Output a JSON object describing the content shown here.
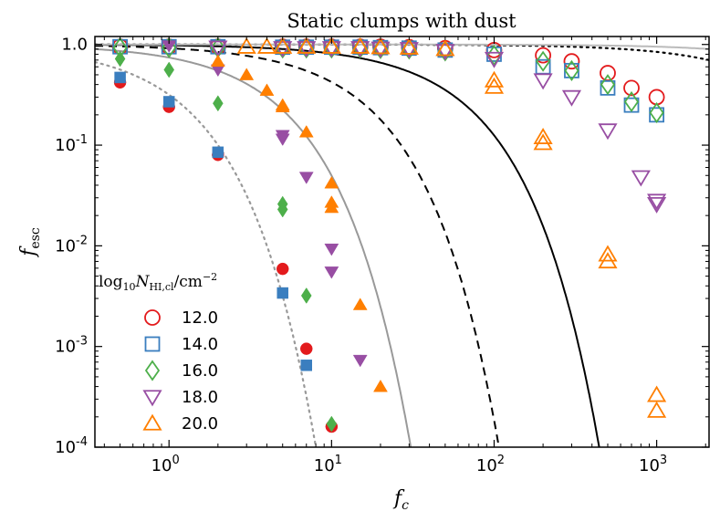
{
  "chart_data": {
    "type": "scatter",
    "title": "Static clumps with dust",
    "xlabel": "f_c",
    "ylabel": "f_esc",
    "xscale": "log",
    "yscale": "log",
    "xlim": [
      0.35,
      2100
    ],
    "ylim": [
      0.0001,
      1.2
    ],
    "x_ticks": [
      1,
      10,
      100,
      1000
    ],
    "x_tick_labels": [
      {
        "base": "10",
        "exp": "0"
      },
      {
        "base": "10",
        "exp": "1"
      },
      {
        "base": "10",
        "exp": "2"
      },
      {
        "base": "10",
        "exp": "3"
      }
    ],
    "y_ticks": [
      0.0001,
      0.001,
      0.01,
      0.1,
      1
    ],
    "y_tick_labels": [
      {
        "base": "10",
        "exp": "-4"
      },
      {
        "base": "10",
        "exp": "-3"
      },
      {
        "base": "10",
        "exp": "-2"
      },
      {
        "base": "10",
        "exp": "-1"
      },
      {
        "base": "10",
        "exp": "0",
        "plain": "1.0"
      }
    ],
    "legend": {
      "title": "log10 N_HI,cl / cm^-2",
      "position": "left",
      "entries": [
        "12.0",
        "14.0",
        "16.0",
        "18.0",
        "20.0"
      ]
    },
    "series": [
      {
        "name": "12.0",
        "marker": "circle",
        "color": "#e31a1c",
        "open": [
          [
            0.5,
            0.95
          ],
          [
            1,
            0.95
          ],
          [
            2,
            0.95
          ],
          [
            5,
            0.95
          ],
          [
            7,
            0.95
          ],
          [
            10,
            0.95
          ],
          [
            15,
            0.95
          ],
          [
            20,
            0.95
          ],
          [
            30,
            0.94
          ],
          [
            50,
            0.92
          ],
          [
            100,
            0.88
          ],
          [
            200,
            0.78
          ],
          [
            300,
            0.68
          ],
          [
            500,
            0.52
          ],
          [
            700,
            0.37
          ],
          [
            1000,
            0.3
          ]
        ],
        "filled": [
          [
            0.5,
            0.42
          ],
          [
            1,
            0.24
          ],
          [
            2,
            0.08
          ],
          [
            5,
            0.0059
          ],
          [
            7,
            0.00095
          ],
          [
            10,
            0.00016
          ]
        ]
      },
      {
        "name": "14.0",
        "marker": "square",
        "color": "#3a7ebf",
        "open": [
          [
            0.5,
            0.95
          ],
          [
            1,
            0.95
          ],
          [
            2,
            0.95
          ],
          [
            5,
            0.94
          ],
          [
            7,
            0.94
          ],
          [
            10,
            0.94
          ],
          [
            15,
            0.94
          ],
          [
            20,
            0.93
          ],
          [
            30,
            0.92
          ],
          [
            50,
            0.88
          ],
          [
            100,
            0.8
          ],
          [
            200,
            0.6
          ],
          [
            300,
            0.55
          ],
          [
            500,
            0.37
          ],
          [
            700,
            0.25
          ],
          [
            1000,
            0.2
          ]
        ],
        "filled": [
          [
            0.5,
            0.47
          ],
          [
            1,
            0.27
          ],
          [
            2,
            0.085
          ],
          [
            5,
            0.0034
          ],
          [
            7,
            0.00065
          ]
        ]
      },
      {
        "name": "16.0",
        "marker": "diamond",
        "color": "#4daf4a",
        "open": [
          [
            0.5,
            0.93
          ],
          [
            1,
            0.93
          ],
          [
            2,
            0.93
          ],
          [
            5,
            0.92
          ],
          [
            7,
            0.92
          ],
          [
            10,
            0.92
          ],
          [
            15,
            0.92
          ],
          [
            20,
            0.91
          ],
          [
            30,
            0.9
          ],
          [
            50,
            0.86
          ],
          [
            100,
            0.78
          ],
          [
            200,
            0.68
          ],
          [
            300,
            0.55
          ],
          [
            500,
            0.4
          ],
          [
            700,
            0.27
          ],
          [
            1000,
            0.21
          ]
        ],
        "filled": [
          [
            0.5,
            0.72
          ],
          [
            1,
            0.56
          ],
          [
            2,
            0.26
          ],
          [
            5,
            0.026
          ],
          [
            5,
            0.023
          ],
          [
            7,
            0.0032
          ],
          [
            10,
            0.00017
          ]
        ]
      },
      {
        "name": "18.0",
        "marker": "triangle-down",
        "color": "#984ea3",
        "open": [
          [
            2,
            0.93
          ],
          [
            5,
            0.92
          ],
          [
            7,
            0.92
          ],
          [
            10,
            0.92
          ],
          [
            15,
            0.92
          ],
          [
            20,
            0.91
          ],
          [
            30,
            0.9
          ],
          [
            50,
            0.86
          ],
          [
            100,
            0.72
          ],
          [
            200,
            0.44
          ],
          [
            300,
            0.3
          ],
          [
            500,
            0.14
          ],
          [
            800,
            0.048
          ],
          [
            1000,
            0.028
          ],
          [
            1000,
            0.026
          ]
        ],
        "filled": [
          [
            1,
            0.97
          ],
          [
            2,
            0.56
          ],
          [
            5,
            0.125
          ],
          [
            5,
            0.115
          ],
          [
            7,
            0.048
          ],
          [
            10,
            0.0093
          ],
          [
            10,
            0.0055
          ],
          [
            15,
            0.00073
          ]
        ]
      },
      {
        "name": "20.0",
        "marker": "triangle-up",
        "color": "#ff7f00",
        "open": [
          [
            3,
            0.95
          ],
          [
            4,
            0.95
          ],
          [
            5,
            0.95
          ],
          [
            7,
            0.95
          ],
          [
            10,
            0.95
          ],
          [
            15,
            0.95
          ],
          [
            20,
            0.94
          ],
          [
            30,
            0.93
          ],
          [
            50,
            0.9
          ],
          [
            100,
            0.44
          ],
          [
            100,
            0.38
          ],
          [
            200,
            0.12
          ],
          [
            200,
            0.105
          ],
          [
            500,
            0.0082
          ],
          [
            500,
            0.007
          ],
          [
            1000,
            0.00033
          ],
          [
            1000,
            0.00023
          ]
        ],
        "filled": [
          [
            2,
            0.68
          ],
          [
            3,
            0.5
          ],
          [
            4,
            0.35
          ],
          [
            5,
            0.25
          ],
          [
            5,
            0.24
          ],
          [
            7,
            0.135
          ],
          [
            10,
            0.042
          ],
          [
            10,
            0.027
          ],
          [
            10,
            0.024
          ],
          [
            15,
            0.0026
          ],
          [
            20,
            0.0004
          ]
        ]
      }
    ],
    "curves": [
      {
        "style": "dotted",
        "color": "#999999",
        "tau": 1.15
      },
      {
        "style": "solid",
        "color": "#999999",
        "tau": 0.3
      },
      {
        "style": "dashed",
        "color": "#000000",
        "tau": 0.086
      },
      {
        "style": "solid",
        "color": "#000000",
        "tau": 0.0208
      },
      {
        "style": "dotted",
        "color": "#000000",
        "tau": 0.00017
      },
      {
        "style": "solid",
        "color": "#bbbbbb",
        "tau": 5e-05
      }
    ]
  }
}
